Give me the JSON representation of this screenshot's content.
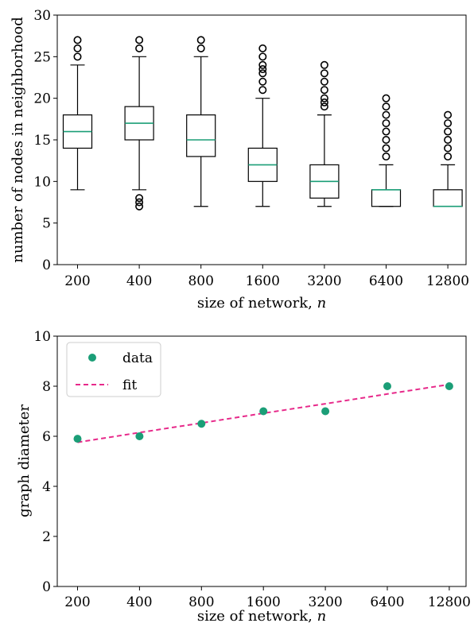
{
  "chart_data": [
    {
      "type": "box",
      "title": "",
      "xlabel": "size of network, n",
      "xlabel_main": "size of network, ",
      "xlabel_var": "n",
      "ylabel": "number of nodes in neighborhood",
      "ylim": [
        0,
        30
      ],
      "yticks": [
        0,
        5,
        10,
        15,
        20,
        25,
        30
      ],
      "categories": [
        "200",
        "400",
        "800",
        "1600",
        "3200",
        "6400",
        "12800"
      ],
      "median_color": "#1b9e77",
      "boxes": [
        {
          "whisker_low": 9,
          "q1": 14,
          "median": 16,
          "q3": 18,
          "whisker_high": 24,
          "outliers": [
            25,
            26,
            27
          ]
        },
        {
          "whisker_low": 9,
          "q1": 15,
          "median": 17,
          "q3": 19,
          "whisker_high": 25,
          "outliers": [
            7,
            7.5,
            8,
            26,
            27
          ]
        },
        {
          "whisker_low": 7,
          "q1": 13,
          "median": 15,
          "q3": 18,
          "whisker_high": 25,
          "outliers": [
            26,
            27
          ]
        },
        {
          "whisker_low": 7,
          "q1": 10,
          "median": 12,
          "q3": 14,
          "whisker_high": 20,
          "outliers": [
            21,
            22,
            23,
            23.5,
            24,
            25,
            26
          ]
        },
        {
          "whisker_low": 7,
          "q1": 8,
          "median": 10,
          "q3": 12,
          "whisker_high": 18,
          "outliers": [
            19,
            19.5,
            20,
            21,
            22,
            23,
            24
          ]
        },
        {
          "whisker_low": 7,
          "q1": 7,
          "median": 9,
          "q3": 9,
          "whisker_high": 12,
          "outliers": [
            13,
            14,
            15,
            16,
            17,
            18,
            19,
            20
          ]
        },
        {
          "whisker_low": 7,
          "q1": 7,
          "median": 7,
          "q3": 9,
          "whisker_high": 12,
          "outliers": [
            13,
            14,
            15,
            16,
            17,
            18
          ]
        }
      ]
    },
    {
      "type": "scatter",
      "title": "",
      "xlabel": "size of network, n",
      "xlabel_main": "size of network, ",
      "xlabel_var": "n",
      "ylabel": "graph diameter",
      "ylim": [
        0,
        10
      ],
      "yticks": [
        0,
        2,
        4,
        6,
        8,
        10
      ],
      "x_scale": "log2",
      "x": [
        200,
        400,
        800,
        1600,
        3200,
        6400,
        12800
      ],
      "x_tick_labels": [
        "200",
        "400",
        "800",
        "1600",
        "3200",
        "6400",
        "12800"
      ],
      "legend_position": "top-left",
      "series": [
        {
          "name": "data",
          "kind": "points",
          "color": "#1b9e77",
          "values": [
            5.9,
            6.0,
            6.5,
            7.0,
            7.0,
            8.0,
            8.0
          ]
        },
        {
          "name": "fit",
          "kind": "dashed-line",
          "color": "#e7298a",
          "values": [
            5.76,
            6.15,
            6.53,
            6.92,
            7.3,
            7.69,
            8.07
          ]
        }
      ]
    }
  ]
}
